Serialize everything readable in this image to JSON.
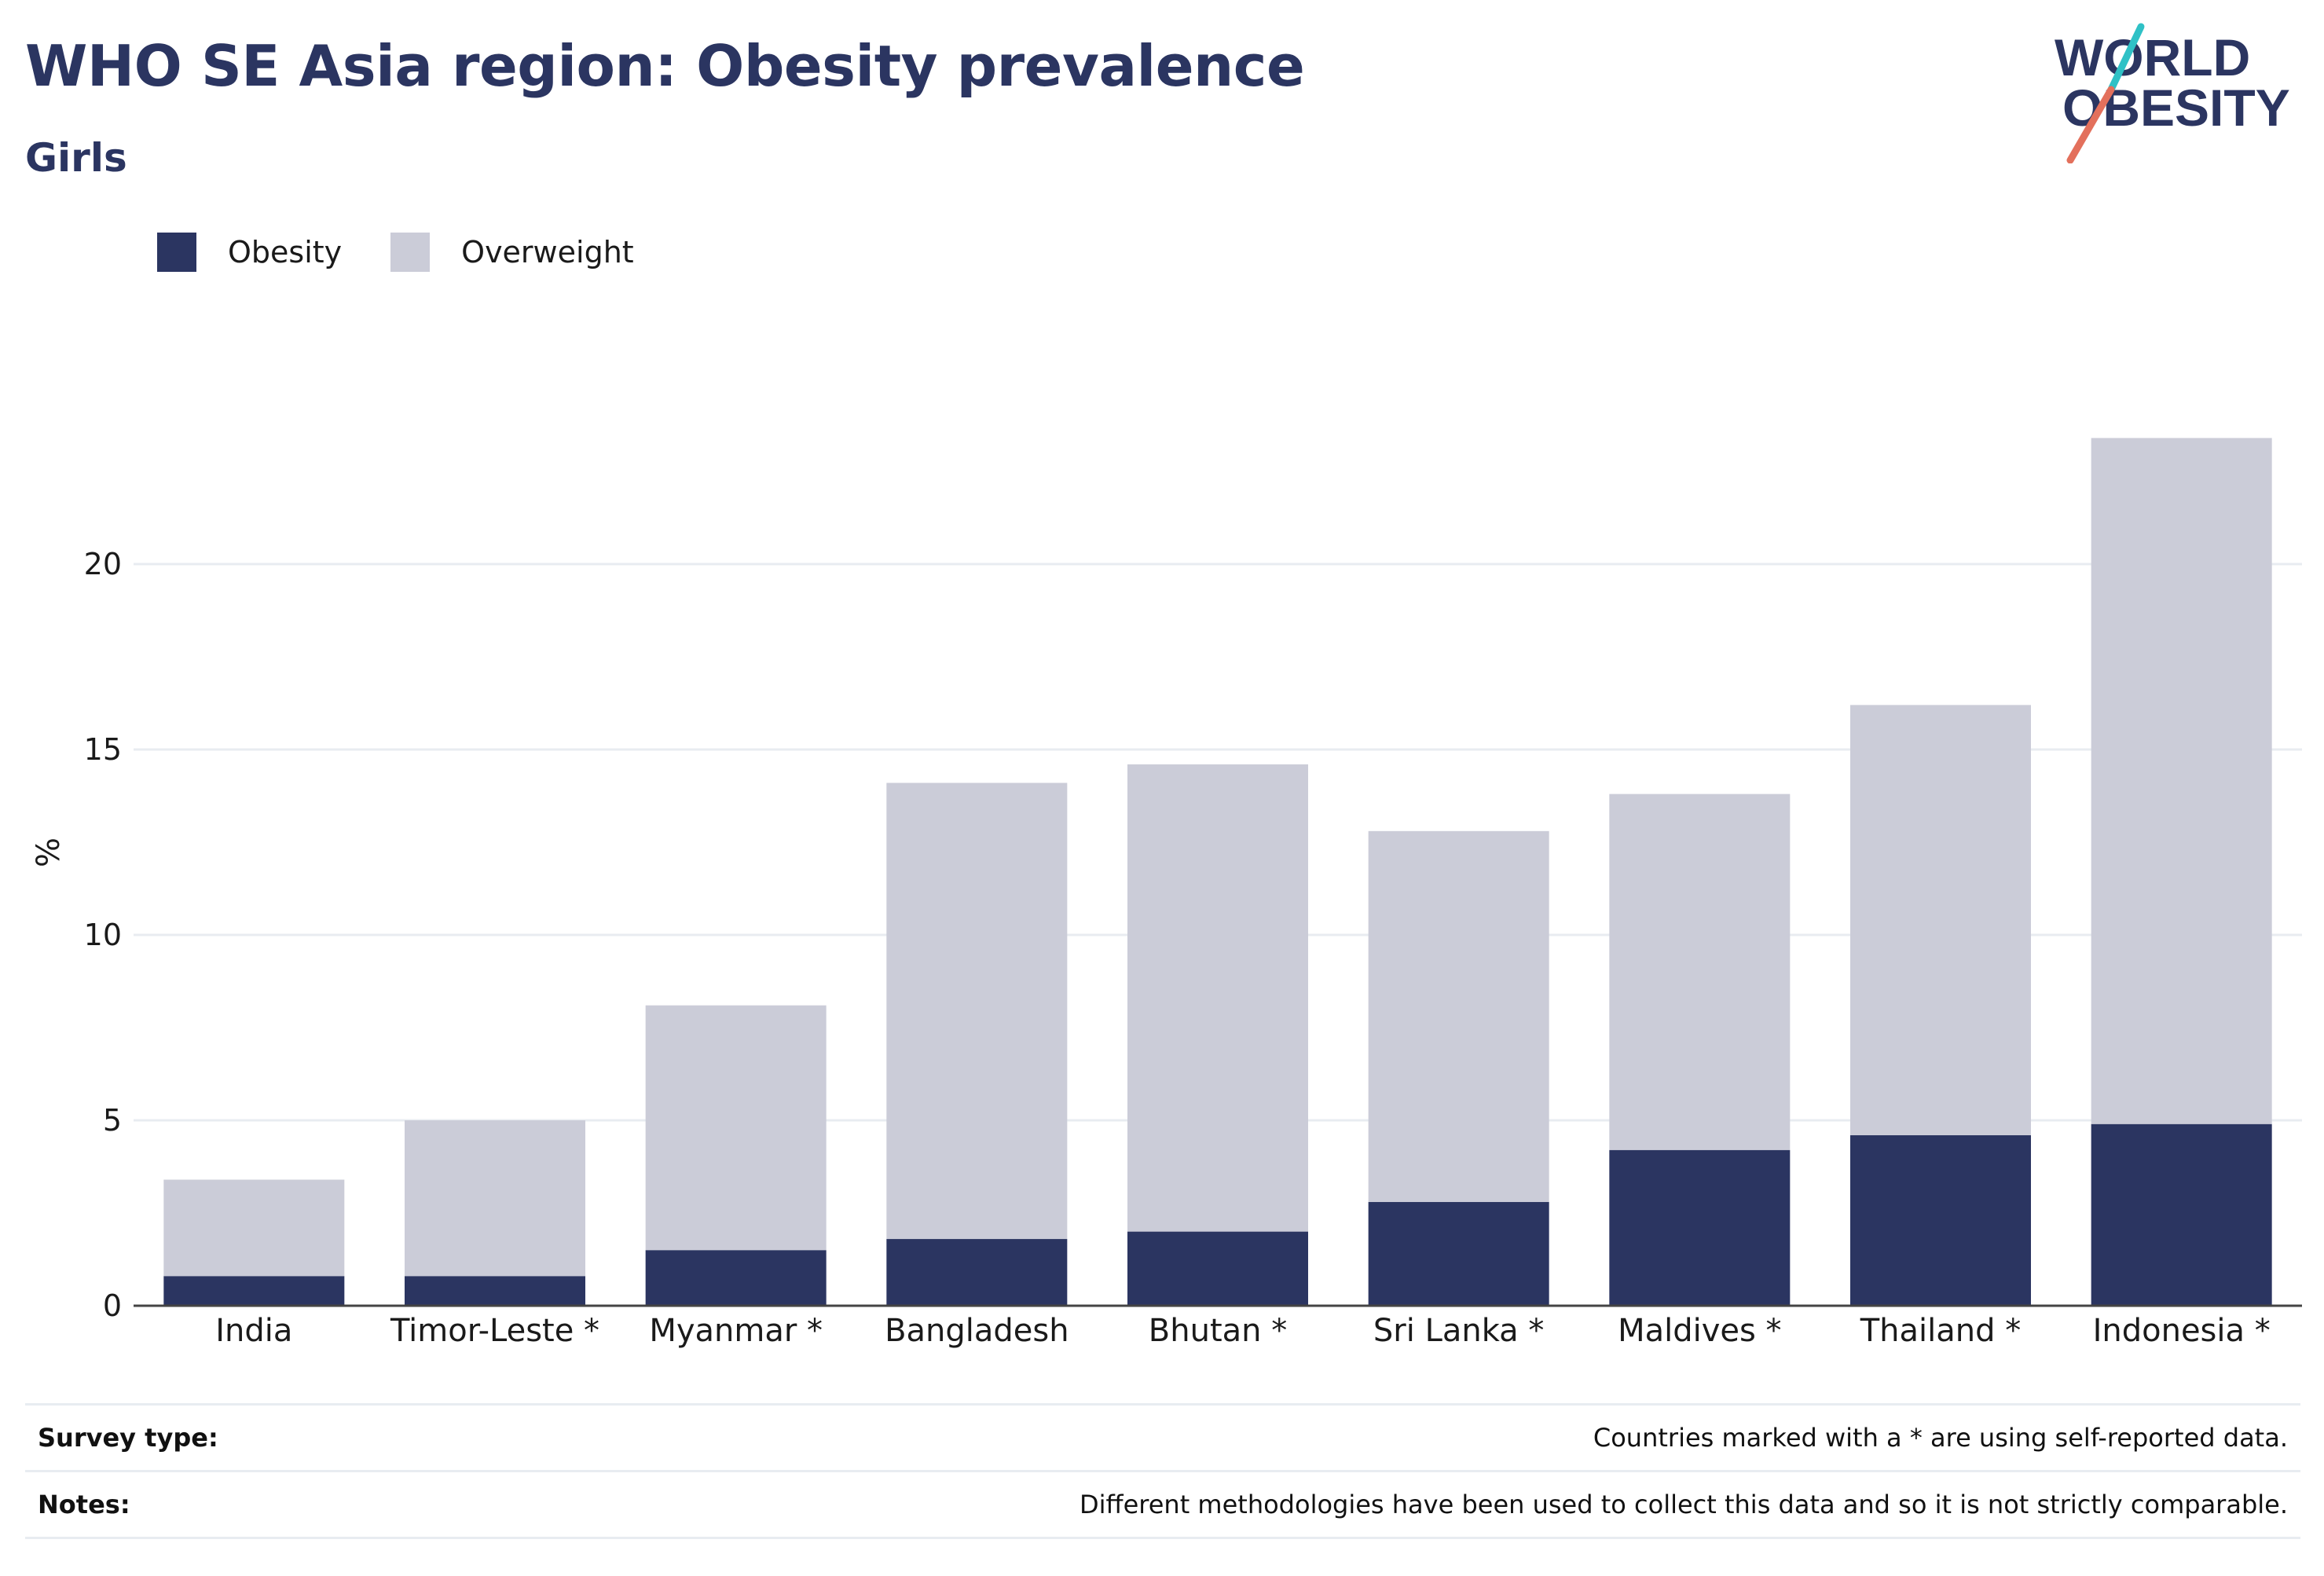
{
  "title": "WHO SE Asia region: Obesity prevalence",
  "subtitle": "Girls",
  "logo": {
    "line1": "WORLD",
    "line2": "OBESITY"
  },
  "colors": {
    "obesity": "#2b3561",
    "overweight": "#cbccd8",
    "title": "#2b3561",
    "logo_teal": "#2fc1c6",
    "logo_coral": "#e3705c"
  },
  "chart_data": {
    "type": "bar",
    "stacked": true,
    "categories": [
      "India",
      "Timor-Leste *",
      "Myanmar *",
      "Bangladesh",
      "Bhutan *",
      "Sri Lanka *",
      "Maldives *",
      "Thailand *",
      "Indonesia *"
    ],
    "series": [
      {
        "name": "Obesity",
        "values": [
          0.8,
          0.8,
          1.5,
          1.8,
          2.0,
          2.8,
          4.2,
          4.6,
          4.9
        ]
      },
      {
        "name": "Overweight",
        "values": [
          2.6,
          4.2,
          6.6,
          12.3,
          12.6,
          10.0,
          9.6,
          11.6,
          18.5
        ]
      }
    ],
    "title": "WHO SE Asia region: Obesity prevalence",
    "subtitle": "Girls",
    "xlabel": "",
    "ylabel": "%",
    "ylim": [
      0,
      25
    ],
    "yticks": [
      0,
      5,
      10,
      15,
      20
    ],
    "grid": true,
    "legend_position": "top-left"
  },
  "legend": [
    {
      "label": "Obesity",
      "color": "#2b3561"
    },
    {
      "label": "Overweight",
      "color": "#cbccd8"
    }
  ],
  "footer": {
    "survey_label": "Survey type:",
    "survey_text": "Countries marked with a * are using self-reported data.",
    "notes_label": "Notes:",
    "notes_text": "Different methodologies have been used to collect this data and so it is not strictly comparable."
  }
}
